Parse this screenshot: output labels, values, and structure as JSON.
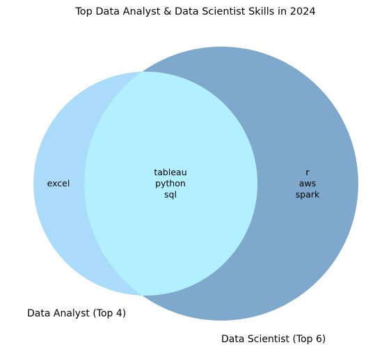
{
  "title": "Top Data Analyst & Data Scientist Skills in 2024",
  "sets": [
    {
      "id": "analyst",
      "label": "Data Analyst (Top 4)",
      "color": "#abdbfb"
    },
    {
      "id": "scientist",
      "label": "Data Scientist (Top 6)",
      "color": "#7ea8cc"
    }
  ],
  "intersection_color": "#b3f0ff",
  "regions": {
    "analyst_only": [
      "excel"
    ],
    "both": [
      "tableau",
      "python",
      "sql"
    ],
    "scientist_only": [
      "r",
      "aws",
      "spark"
    ]
  }
}
